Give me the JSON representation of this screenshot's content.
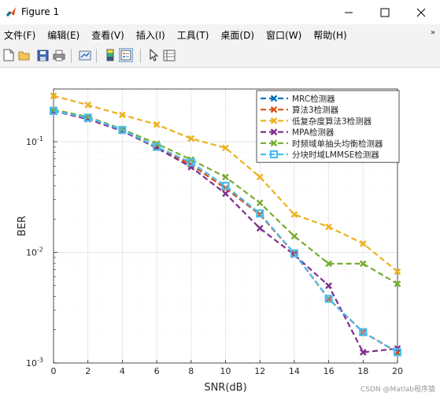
{
  "window": {
    "title": "Figure 1"
  },
  "menubar": {
    "items": [
      "文件(F)",
      "编辑(E)",
      "查看(V)",
      "插入(I)",
      "工具(T)",
      "桌面(D)",
      "窗口(W)",
      "帮助(H)"
    ],
    "overflow_icon": "chevron-double-right-icon"
  },
  "toolbar": {
    "buttons": [
      "new-figure-icon",
      "open-file-icon",
      "save-icon",
      "print-icon",
      "link-plot-icon",
      "insert-colorbar-icon",
      "insert-legend-icon",
      "edit-plot-icon",
      "property-inspector-icon"
    ]
  },
  "watermark": "CSDN @Matlab程序猿",
  "chart_data": {
    "type": "line",
    "xlabel": "SNR(dB)",
    "ylabel": "BER",
    "x": [
      0,
      2,
      4,
      6,
      8,
      10,
      12,
      14,
      16,
      18,
      20
    ],
    "xticks": [
      "0",
      "2",
      "4",
      "6",
      "8",
      "10",
      "12",
      "14",
      "16",
      "18",
      "20"
    ],
    "ylog": true,
    "ylim": [
      0.001,
      0.3
    ],
    "yticks": [
      "10^-1",
      "10^-2",
      "10^-3"
    ],
    "grid": true,
    "legend_position": "top-right",
    "series": [
      {
        "name": "MRC检测器",
        "color": "#0072BD",
        "marker": "x",
        "values": [
          0.19,
          0.165,
          0.128,
          0.09,
          0.062,
          0.038,
          0.022,
          0.0098,
          0.0038,
          0.0019,
          0.00125
        ]
      },
      {
        "name": "算法3检测器",
        "color": "#D95319",
        "marker": "x",
        "values": [
          0.19,
          0.165,
          0.128,
          0.09,
          0.062,
          0.038,
          0.022,
          0.0098,
          0.0038,
          0.0019,
          0.00125
        ]
      },
      {
        "name": "低复杂度算法3检测器",
        "color": "#EDB120",
        "marker": "x",
        "values": [
          0.26,
          0.215,
          0.175,
          0.143,
          0.107,
          0.088,
          0.048,
          0.022,
          0.017,
          0.012,
          0.0067
        ]
      },
      {
        "name": "MPA检测器",
        "color": "#7E2F8E",
        "marker": "x",
        "values": [
          0.19,
          0.16,
          0.125,
          0.088,
          0.059,
          0.034,
          0.0165,
          0.0095,
          0.005,
          0.00125,
          0.00135
        ]
      },
      {
        "name": "时频域单抽头均衡检测器",
        "color": "#77AC30",
        "marker": "x",
        "values": [
          0.195,
          0.168,
          0.13,
          0.096,
          0.069,
          0.048,
          0.028,
          0.014,
          0.0079,
          0.0079,
          0.0052
        ]
      },
      {
        "name": "分块时域LMMSE检测器",
        "color": "#4DBEEE",
        "marker": "square",
        "values": [
          0.19,
          0.165,
          0.128,
          0.09,
          0.065,
          0.04,
          0.0225,
          0.0098,
          0.0038,
          0.0019,
          0.00125
        ]
      }
    ]
  }
}
